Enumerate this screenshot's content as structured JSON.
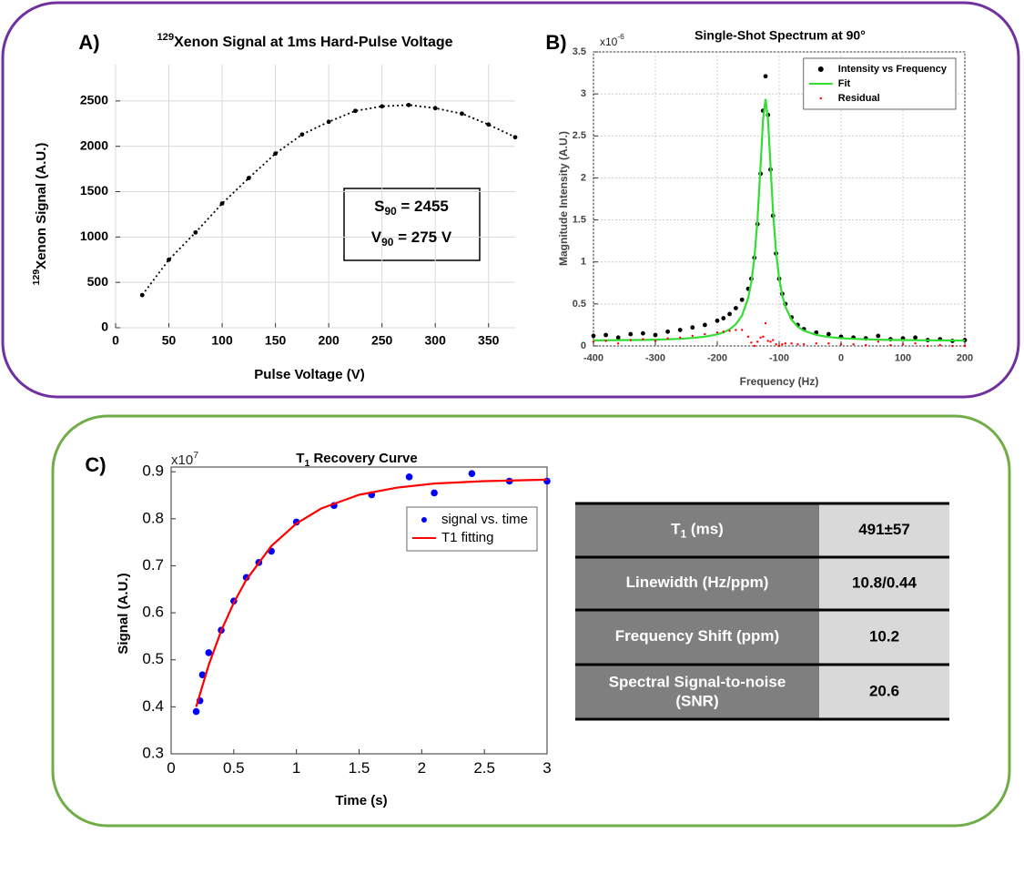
{
  "chart_data": [
    {
      "type": "line",
      "panel": "A)",
      "title": [
        "129",
        "Xenon Signal at 1ms Hard-Pulse Voltage"
      ],
      "xlabel": "Pulse Voltage (V)",
      "ylabel": [
        "129",
        "Xenon Signal (A.U.)"
      ],
      "annotation": [
        [
          "S",
          "90",
          " = 2455"
        ],
        [
          "V",
          "90",
          " = 275 V"
        ]
      ],
      "xlim": [
        0,
        375
      ],
      "ylim": [
        0,
        2900
      ],
      "xticks": [
        0,
        50,
        100,
        150,
        200,
        250,
        300,
        350
      ],
      "yticks": [
        0,
        500,
        1000,
        1500,
        2000,
        2500
      ],
      "grid": true,
      "series": [
        {
          "color": "#000000",
          "line": "dotted",
          "marker": "dot",
          "x": [
            25,
            50,
            75,
            100,
            125,
            150,
            175,
            200,
            225,
            250,
            275,
            300,
            325,
            350,
            375
          ],
          "values": [
            360,
            750,
            1050,
            1370,
            1650,
            1920,
            2130,
            2270,
            2390,
            2440,
            2455,
            2420,
            2360,
            2240,
            2100
          ]
        }
      ]
    },
    {
      "type": "scatter",
      "panel": "B)",
      "title": "Single-Shot Spectrum at 90°",
      "multiplier": [
        "x10",
        "-6"
      ],
      "xlabel": "Frequency (Hz)",
      "ylabel": "Magnitude Intensity (A.U.)",
      "xlim": [
        -400,
        200
      ],
      "ylim": [
        0,
        3.5
      ],
      "xticks": [
        -400,
        -300,
        -200,
        -100,
        0,
        100,
        200
      ],
      "yticks": [
        0,
        0.5,
        1,
        1.5,
        2,
        2.5,
        3,
        3.5
      ],
      "grid": true,
      "legend": "upper right",
      "x": [
        -400,
        -380,
        -360,
        -340,
        -320,
        -300,
        -280,
        -260,
        -240,
        -220,
        -200,
        -190,
        -180,
        -170,
        -160,
        -150,
        -145,
        -140,
        -135,
        -130,
        -126,
        -122,
        -118,
        -114,
        -110,
        -105,
        -100,
        -95,
        -90,
        -80,
        -70,
        -60,
        -40,
        -20,
        0,
        20,
        40,
        60,
        80,
        100,
        120,
        140,
        160,
        180,
        200
      ],
      "series": [
        {
          "name": "Intensity vs Frequency",
          "color": "#000000",
          "marker": "dot",
          "values": [
            0.12,
            0.13,
            0.1,
            0.14,
            0.15,
            0.13,
            0.17,
            0.19,
            0.22,
            0.25,
            0.3,
            0.33,
            0.38,
            0.45,
            0.55,
            0.68,
            0.8,
            1.05,
            1.45,
            2.05,
            2.8,
            3.21,
            2.75,
            2.1,
            1.55,
            1.1,
            0.8,
            0.62,
            0.5,
            0.34,
            0.25,
            0.2,
            0.16,
            0.14,
            0.11,
            0.1,
            0.09,
            0.12,
            0.08,
            0.09,
            0.1,
            0.07,
            0.08,
            0.06,
            0.07
          ]
        },
        {
          "name": "Fit",
          "color": "#33dd33",
          "line": "solid",
          "values": [
            0.066,
            0.067,
            0.069,
            0.07,
            0.072,
            0.075,
            0.079,
            0.085,
            0.095,
            0.11,
            0.138,
            0.161,
            0.198,
            0.257,
            0.362,
            0.571,
            0.757,
            1.047,
            1.5,
            2.148,
            2.69,
            2.94,
            2.69,
            2.148,
            1.615,
            1.123,
            0.806,
            0.602,
            0.468,
            0.313,
            0.229,
            0.181,
            0.131,
            0.106,
            0.092,
            0.084,
            0.079,
            0.075,
            0.072,
            0.07,
            0.068,
            0.067,
            0.066,
            0.065,
            0.065
          ]
        },
        {
          "name": "Residual",
          "color": "#ff0000",
          "marker": "small",
          "values": [
            0.05,
            0.06,
            0.03,
            0.07,
            0.08,
            0.06,
            0.09,
            0.1,
            0.12,
            0.14,
            0.16,
            0.17,
            0.18,
            0.19,
            0.19,
            0.11,
            0.04,
            0,
            0.05,
            0.1,
            0.11,
            0.27,
            0.06,
            0.05,
            0.07,
            0.02,
            0,
            0.02,
            0.03,
            0.03,
            0.02,
            0.02,
            0.03,
            0.03,
            0.02,
            0.02,
            0.01,
            0.05,
            0.01,
            0.02,
            0.03,
            0,
            0.01,
            0,
            0
          ]
        }
      ]
    },
    {
      "type": "scatter",
      "panel": "C)",
      "title": [
        "T",
        "1",
        " Recovery Curve"
      ],
      "multiplier": [
        "x10",
        "7"
      ],
      "xlabel": "Time (s)",
      "ylabel": "Signal (A.U.)",
      "xlim": [
        0,
        3
      ],
      "ylim": [
        0.3,
        0.91
      ],
      "xticks": [
        0,
        0.5,
        1,
        1.5,
        2,
        2.5,
        3
      ],
      "yticks": [
        0.3,
        0.4,
        0.5,
        0.6,
        0.7,
        0.8,
        0.9
      ],
      "grid": false,
      "legend": "upper right",
      "series": [
        {
          "name": "signal vs. time",
          "color": "#0000ff",
          "marker": "dot",
          "x": [
            0.2,
            0.23,
            0.25,
            0.3,
            0.4,
            0.5,
            0.6,
            0.7,
            0.8,
            1.0,
            1.3,
            1.6,
            1.9,
            2.1,
            2.4,
            2.7,
            3.0
          ],
          "values": [
            0.39,
            0.413,
            0.468,
            0.515,
            0.563,
            0.625,
            0.675,
            0.707,
            0.731,
            0.793,
            0.828,
            0.851,
            0.889,
            0.855,
            0.896,
            0.88,
            0.88
          ]
        },
        {
          "name": "T1 fitting",
          "color": "#ff0000",
          "line": "solid",
          "x": [
            0.2,
            0.3,
            0.4,
            0.5,
            0.6,
            0.8,
            1.0,
            1.2,
            1.5,
            1.8,
            2.1,
            2.5,
            3.0
          ],
          "values": [
            0.4,
            0.489,
            0.562,
            0.621,
            0.67,
            0.742,
            0.79,
            0.822,
            0.851,
            0.866,
            0.875,
            0.88,
            0.883
          ]
        }
      ]
    }
  ],
  "table": {
    "rows": [
      {
        "label": [
          "T",
          "1",
          " (ms)"
        ],
        "value": "491±57"
      },
      {
        "label": [
          "Linewidth (Hz/ppm)"
        ],
        "value": "10.8/0.44"
      },
      {
        "label": [
          "Frequency Shift (ppm)"
        ],
        "value": "10.2"
      },
      {
        "label": [
          "Spectral Signal-to-noise",
          "(SNR)"
        ],
        "value": "20.6"
      }
    ]
  }
}
